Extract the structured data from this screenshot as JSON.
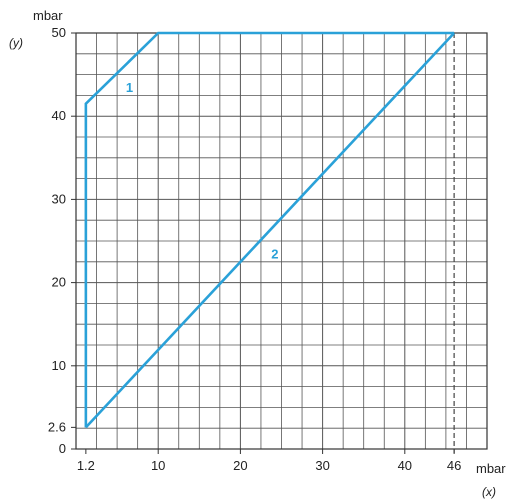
{
  "chart_data": {
    "type": "line",
    "x_unit": "mbar",
    "y_unit": "mbar",
    "x_var": "(x)",
    "y_var": "(y)",
    "xlim": [
      0,
      50
    ],
    "ylim": [
      0,
      50
    ],
    "xticks": [
      {
        "value": 1.2,
        "label": "1.2"
      },
      {
        "value": 10,
        "label": "10"
      },
      {
        "value": 20,
        "label": "20"
      },
      {
        "value": 30,
        "label": "30"
      },
      {
        "value": 40,
        "label": "40"
      },
      {
        "value": 46,
        "label": "46"
      }
    ],
    "yticks": [
      {
        "value": 0,
        "label": "0"
      },
      {
        "value": 2.6,
        "label": "2.6"
      },
      {
        "value": 10,
        "label": "10"
      },
      {
        "value": 20,
        "label": "20"
      },
      {
        "value": 30,
        "label": "30"
      },
      {
        "value": 40,
        "label": "40"
      },
      {
        "value": 50,
        "label": "50"
      }
    ],
    "grid": true,
    "grid_major_step": 5,
    "grid_minor_step": 1,
    "dashed_reference_x": 46,
    "series": [
      {
        "label": "1",
        "label_at": {
          "x": 6.5,
          "y": 43.5
        },
        "x": [
          1.2,
          1.2,
          10,
          46
        ],
        "y": [
          2.6,
          41.5,
          50,
          50
        ]
      },
      {
        "label": "2",
        "label_at": {
          "x": 24.2,
          "y": 23.5
        },
        "x": [
          1.2,
          46
        ],
        "y": [
          2.6,
          50
        ]
      }
    ],
    "line_color": "#2aa1d8",
    "grid_color": "#555555"
  }
}
